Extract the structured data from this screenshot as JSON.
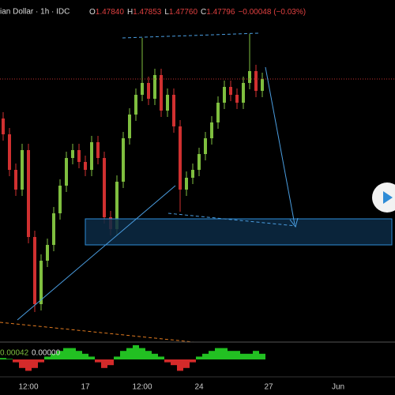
{
  "header": {
    "symbol": "ian Dollar · 1h · IDC",
    "ohlc": [
      {
        "key": "O",
        "value": "1.47840"
      },
      {
        "key": "H",
        "value": "1.47853"
      },
      {
        "key": "L",
        "value": "1.47760"
      },
      {
        "key": "C",
        "value": "1.47796"
      }
    ],
    "change": "−0.00048 (−0.03%)"
  },
  "chart_data": [
    {
      "type": "candlestick",
      "up_color": "#7fbf3f",
      "down_color": "#d03030",
      "xlim": [
        -0.5,
        62
      ],
      "ylim": [
        1.4714,
        1.48
      ],
      "xticks": [
        {
          "value": 4,
          "label": "12:00"
        },
        {
          "value": 13,
          "label": "17"
        },
        {
          "value": 22,
          "label": "12:00"
        },
        {
          "value": 31,
          "label": "24"
        },
        {
          "value": 42,
          "label": "27"
        },
        {
          "value": 53,
          "label": "Jun"
        }
      ],
      "open": [
        1.477,
        1.4766,
        1.4757,
        1.4752,
        1.4762,
        1.474,
        1.4723,
        1.4734,
        1.4738,
        1.4746,
        1.4753,
        1.476,
        1.4762,
        1.4759,
        1.4757,
        1.4764,
        1.476,
        1.4745,
        1.4742,
        1.4754,
        1.4765,
        1.4771,
        1.4776,
        1.4779,
        1.4775,
        1.4781,
        1.4772,
        1.4776,
        1.4768,
        1.4752,
        1.4755,
        1.4757,
        1.4761,
        1.4765,
        1.4769,
        1.4774,
        1.4778,
        1.4776,
        1.4774,
        1.4779,
        1.4782,
        1.4777
      ],
      "high": [
        1.47716,
        1.47676,
        1.47586,
        1.47636,
        1.47636,
        1.47416,
        1.47356,
        1.47396,
        1.47476,
        1.47546,
        1.47616,
        1.47636,
        1.47636,
        1.47606,
        1.47656,
        1.47656,
        1.47616,
        1.47466,
        1.47556,
        1.47666,
        1.47726,
        1.47776,
        1.47904,
        1.47806,
        1.47826,
        1.47826,
        1.47776,
        1.47776,
        1.47696,
        1.47566,
        1.47586,
        1.47626,
        1.47666,
        1.47706,
        1.47756,
        1.47796,
        1.47796,
        1.47776,
        1.47806,
        1.47914,
        1.47836,
        1.47816
      ],
      "low": [
        1.47644,
        1.47554,
        1.47504,
        1.47504,
        1.47384,
        1.4721,
        1.47214,
        1.47324,
        1.47364,
        1.47444,
        1.47514,
        1.47584,
        1.47574,
        1.47554,
        1.47554,
        1.47584,
        1.47434,
        1.47404,
        1.47404,
        1.47524,
        1.47634,
        1.47694,
        1.47744,
        1.47734,
        1.47734,
        1.47704,
        1.47704,
        1.47664,
        1.47464,
        1.47504,
        1.47534,
        1.47554,
        1.47594,
        1.47634,
        1.47674,
        1.47724,
        1.47744,
        1.47724,
        1.47724,
        1.47774,
        1.47754,
        1.47754
      ],
      "close": [
        1.4766,
        1.4757,
        1.4752,
        1.4762,
        1.474,
        1.4723,
        1.4734,
        1.4738,
        1.4746,
        1.4753,
        1.476,
        1.4762,
        1.4759,
        1.4757,
        1.4764,
        1.476,
        1.4745,
        1.4742,
        1.4754,
        1.4765,
        1.4771,
        1.4776,
        1.4779,
        1.4775,
        1.4781,
        1.4772,
        1.4776,
        1.4768,
        1.4752,
        1.4755,
        1.4757,
        1.4761,
        1.4765,
        1.4769,
        1.4774,
        1.4778,
        1.4776,
        1.4774,
        1.4779,
        1.4782,
        1.4777,
        1.478
      ]
    },
    {
      "type": "bar",
      "readout": [
        "0.00042",
        "0.00000"
      ],
      "up_color": "#22c022",
      "down_color": "#d42a2a",
      "ylim": [
        -0.0005,
        0.0005
      ],
      "values": [
        5e-05,
        2e-05,
        -0.0001,
        -0.0003,
        -0.0004,
        -0.0003,
        -0.0001,
        0.0001,
        0.0002,
        0.0003,
        0.0004,
        0.0004,
        0.0003,
        0.0002,
        0.0001,
        -0.0001,
        -0.0003,
        -0.0002,
        0.0001,
        0.0003,
        0.0004,
        0.0005,
        0.0004,
        0.0003,
        0.0002,
        0.0001,
        -0.0001,
        -0.0002,
        -0.0004,
        -0.0003,
        -0.0001,
        0.0001,
        0.0002,
        0.0003,
        0.0004,
        0.0004,
        0.0003,
        0.0003,
        0.0002,
        0.0002,
        0.0003,
        0.0002
      ]
    }
  ]
}
